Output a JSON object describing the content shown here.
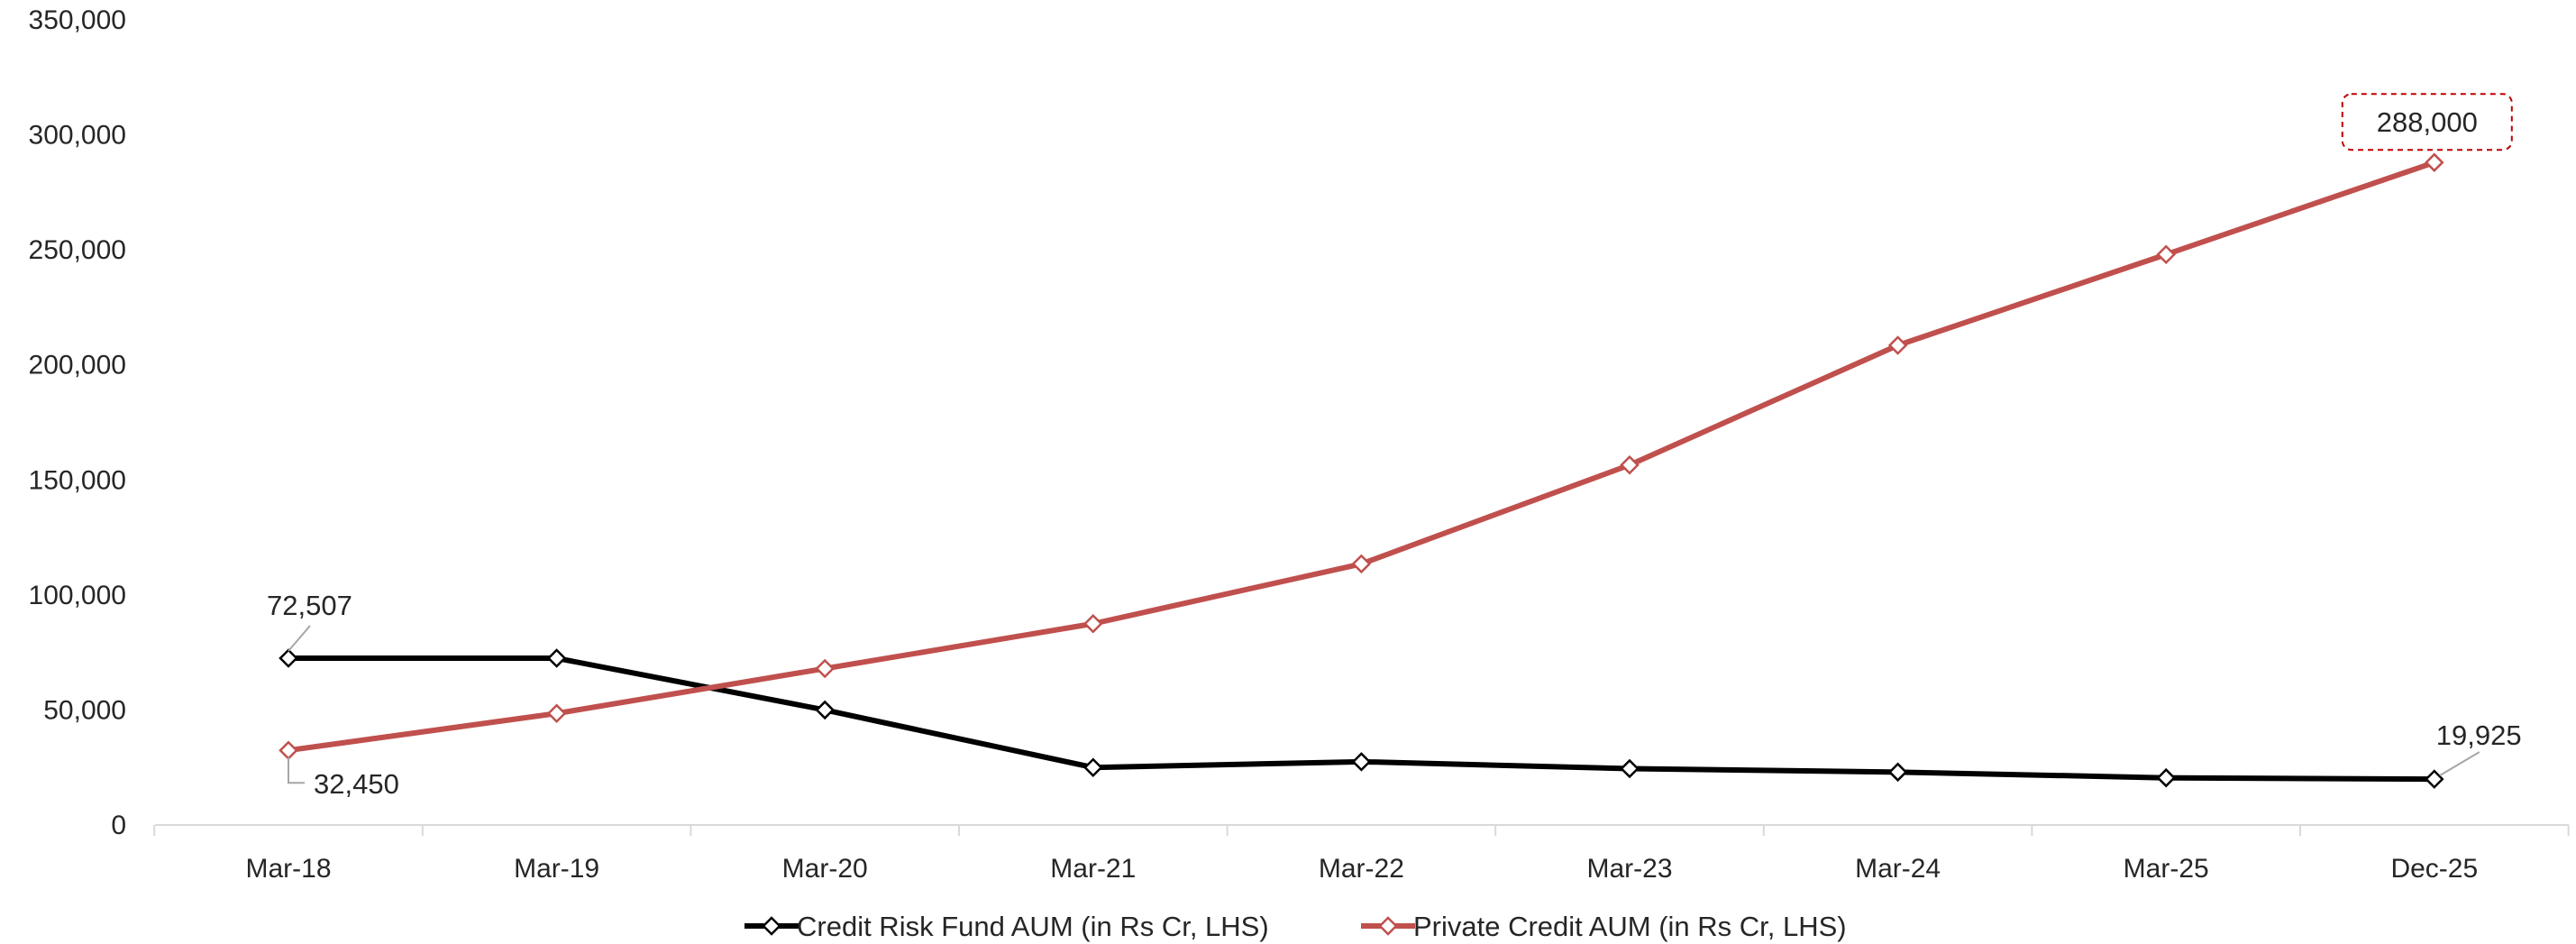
{
  "chart_data": {
    "type": "line",
    "title": "",
    "xlabel": "",
    "ylabel": "",
    "categories": [
      "Mar-18",
      "Mar-19",
      "Mar-20",
      "Mar-21",
      "Mar-22",
      "Mar-23",
      "Mar-24",
      "Mar-25",
      "Dec-25"
    ],
    "ylim": [
      0,
      350000
    ],
    "yticks": [
      0,
      50000,
      100000,
      150000,
      200000,
      250000,
      300000,
      350000
    ],
    "ytick_labels": [
      "0",
      "50,000",
      "100,000",
      "150,000",
      "200,000",
      "250,000",
      "300,000",
      "350,000"
    ],
    "grid": false,
    "legend_position": "bottom",
    "series": [
      {
        "name": "Credit Risk Fund AUM (in Rs Cr, LHS)",
        "color": "#000000",
        "marker": "diamond",
        "values": [
          72507,
          72500,
          50000,
          25000,
          27500,
          24500,
          23000,
          20500,
          19925
        ]
      },
      {
        "name": "Private Credit AUM (in Rs Cr, LHS)",
        "color": "#c0504d",
        "marker": "diamond",
        "values": [
          32450,
          48500,
          68000,
          87500,
          113500,
          156500,
          208500,
          248000,
          288000
        ]
      }
    ],
    "annotations": [
      {
        "series": 0,
        "index": 0,
        "text": "72,507",
        "placement": "above",
        "boxed": false
      },
      {
        "series": 0,
        "index": 8,
        "text": "19,925",
        "placement": "above-right",
        "boxed": false
      },
      {
        "series": 1,
        "index": 0,
        "text": "32,450",
        "placement": "below-right",
        "boxed": false
      },
      {
        "series": 1,
        "index": 8,
        "text": "288,000",
        "placement": "above",
        "boxed": true
      }
    ]
  }
}
